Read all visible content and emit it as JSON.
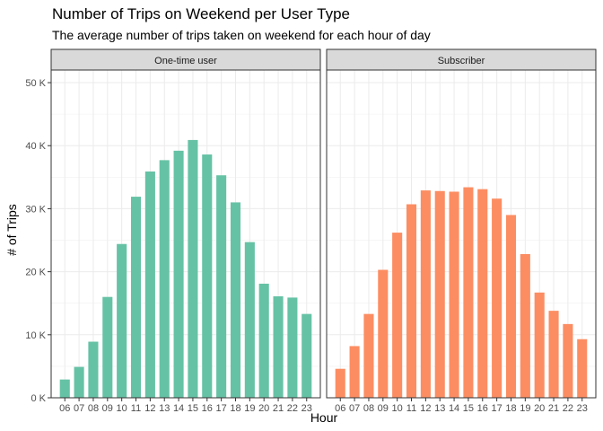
{
  "chart_data": {
    "type": "bar",
    "title": "Number of Trips on Weekend per User Type",
    "subtitle": "The average number of trips taken on weekend for each hour of day",
    "xlabel": "Hour",
    "ylabel": "# of Trips",
    "ylim": [
      0,
      52000
    ],
    "yticks": [
      0,
      10000,
      20000,
      30000,
      40000,
      50000
    ],
    "ytick_labels": [
      "0 K",
      "10 K",
      "20 K",
      "30 K",
      "40 K",
      "50 K"
    ],
    "categories": [
      "06",
      "07",
      "08",
      "09",
      "10",
      "11",
      "12",
      "13",
      "14",
      "15",
      "16",
      "17",
      "18",
      "19",
      "20",
      "21",
      "22",
      "23"
    ],
    "grid": true,
    "legend": "none",
    "panels": [
      {
        "name": "One-time user",
        "color": "#66C2A5",
        "values": [
          2900,
          4900,
          8900,
          16000,
          24400,
          31900,
          35900,
          37700,
          39200,
          40900,
          38600,
          35300,
          31000,
          24700,
          18100,
          16100,
          15900,
          13300
        ]
      },
      {
        "name": "Subscriber",
        "color": "#FC8D62",
        "values": [
          4600,
          8200,
          13300,
          20300,
          26200,
          30700,
          32900,
          32800,
          32700,
          33400,
          33100,
          31600,
          29000,
          22800,
          16700,
          13800,
          11700,
          9300
        ]
      }
    ]
  }
}
